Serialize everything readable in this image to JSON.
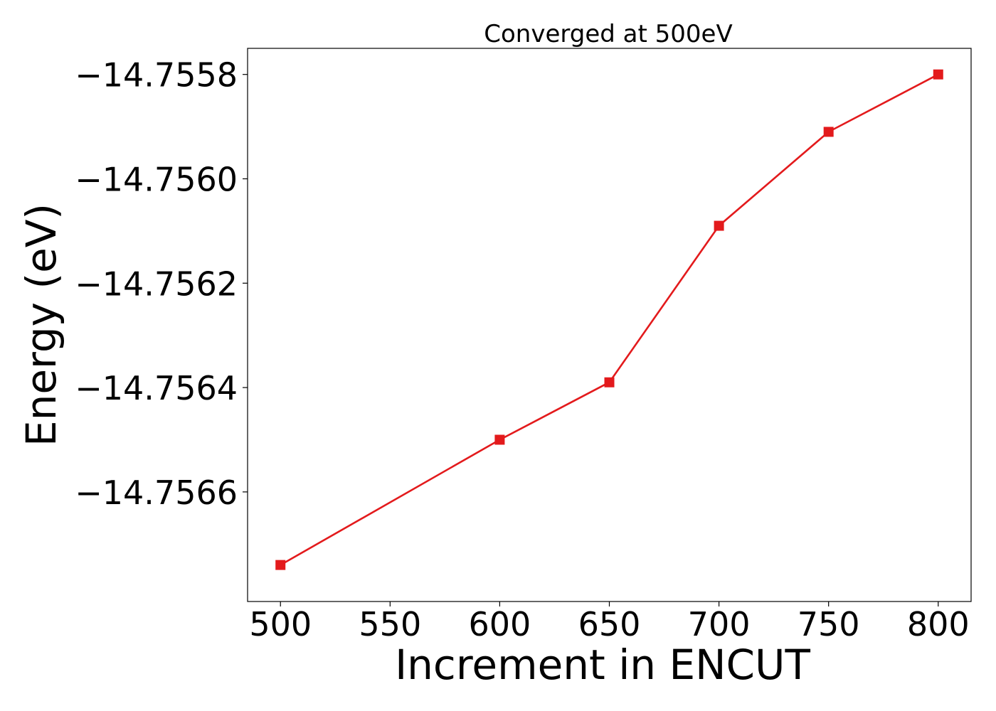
{
  "chart_data": {
    "type": "line",
    "title": "Converged at 500eV",
    "xlabel": "Increment in ENCUT",
    "ylabel": "Energy (eV)",
    "xlim": [
      485,
      815
    ],
    "ylim": [
      -14.75681,
      -14.75575
    ],
    "xticks": [
      500,
      550,
      600,
      650,
      700,
      750,
      800
    ],
    "xtick_labels": [
      "500",
      "550",
      "600",
      "650",
      "700",
      "750",
      "800"
    ],
    "yticks": [
      -14.7566,
      -14.7564,
      -14.7562,
      -14.756,
      -14.7558
    ],
    "ytick_labels": [
      "−14.7566",
      "−14.7564",
      "−14.7562",
      "−14.7560",
      "−14.7558"
    ],
    "grid": false,
    "series": [
      {
        "color": "#e31a1c",
        "marker": "square",
        "x": [
          500,
          600,
          650,
          700,
          750,
          800
        ],
        "y": [
          -14.75674,
          -14.7565,
          -14.75639,
          -14.75609,
          -14.75591,
          -14.7558
        ]
      }
    ]
  }
}
